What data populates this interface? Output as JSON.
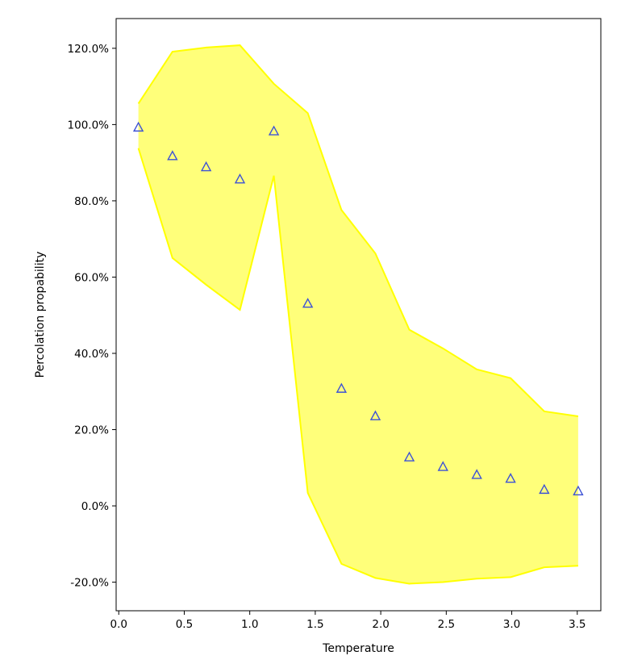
{
  "chart_data": {
    "type": "scatter",
    "title": "",
    "xlabel": "Temperature",
    "ylabel": "Percolation propability",
    "xlim": [
      -0.02,
      3.68
    ],
    "ylim": [
      -27.5,
      127.8
    ],
    "x_ticks": [
      0.0,
      0.5,
      1.0,
      1.5,
      2.0,
      2.5,
      3.0,
      3.5
    ],
    "x_tick_labels": [
      "0.0",
      "0.5",
      "1.0",
      "1.5",
      "2.0",
      "2.5",
      "3.0",
      "3.5"
    ],
    "y_ticks": [
      -20,
      0,
      20,
      40,
      60,
      80,
      100,
      120
    ],
    "y_tick_labels": [
      "-20.0%",
      "0.0%",
      "20.0%",
      "40.0%",
      "60.0%",
      "80.0%",
      "100.0%",
      "120.0%"
    ],
    "grid": false,
    "marker": "triangle-open",
    "marker_color": "#3d52d5",
    "band_fill": "#ffff7a",
    "band_edge": "#ffff00",
    "x": [
      0.15,
      0.41,
      0.667,
      0.925,
      1.184,
      1.443,
      1.7,
      1.959,
      2.218,
      2.475,
      2.733,
      2.991,
      3.248,
      3.507
    ],
    "y": [
      99.3,
      91.8,
      88.9,
      85.7,
      98.3,
      53.1,
      30.8,
      23.6,
      12.8,
      10.3,
      8.2,
      7.2,
      4.3,
      3.9
    ],
    "band_upper": [
      105.5,
      119.1,
      120.2,
      120.8,
      110.7,
      103.0,
      77.6,
      66.2,
      46.2,
      41.3,
      35.8,
      33.5,
      24.8,
      23.5
    ],
    "band_lower": [
      93.8,
      65.0,
      58.0,
      51.4,
      86.6,
      3.4,
      -15.2,
      -18.9,
      -20.4,
      -20.0,
      -19.1,
      -18.7,
      -16.1,
      -15.7
    ]
  }
}
